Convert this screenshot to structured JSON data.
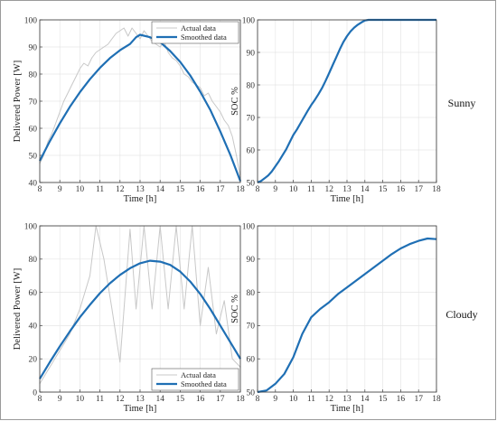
{
  "row_labels": [
    "Sunny",
    "Cloudy"
  ],
  "chart_data": [
    {
      "type": "line",
      "xlabel": "Time [h]",
      "ylabel": "Delivered Power [W]",
      "xlim": [
        8,
        18
      ],
      "ylim": [
        40,
        100
      ],
      "xticks": [
        "8",
        "9",
        "10",
        "11",
        "12",
        "13",
        "14",
        "15",
        "16",
        "17",
        "18"
      ],
      "yticks": [
        "40",
        "50",
        "60",
        "70",
        "80",
        "90",
        "100"
      ],
      "grid": true,
      "legend": "top-center",
      "series": [
        {
          "name": "Actual data",
          "color": "#c8c8c8",
          "x": [
            8,
            8.2,
            8.4,
            8.6,
            8.8,
            9,
            9.2,
            9.4,
            9.6,
            9.8,
            10,
            10.2,
            10.4,
            10.6,
            10.8,
            11,
            11.2,
            11.4,
            11.6,
            11.8,
            12,
            12.2,
            12.4,
            12.6,
            12.8,
            13,
            13.2,
            13.4,
            13.6,
            13.8,
            14,
            14.2,
            14.4,
            14.6,
            14.8,
            15,
            15.2,
            15.4,
            15.6,
            15.8,
            16,
            16.2,
            16.4,
            16.6,
            16.8,
            17,
            17.2,
            17.4,
            17.6,
            17.8,
            18
          ],
          "y": [
            47,
            50,
            55,
            58,
            62,
            66,
            70,
            73,
            76,
            79,
            82,
            84,
            83,
            86,
            88,
            89,
            90,
            91,
            93,
            95,
            96,
            97,
            94,
            97,
            95,
            93,
            96,
            94,
            92,
            91,
            90,
            92,
            88,
            86,
            85,
            83,
            80,
            79,
            77,
            76,
            75,
            72,
            73,
            70,
            68,
            66,
            63,
            61,
            57,
            50,
            42
          ]
        },
        {
          "name": "Smoothed data",
          "color": "#1f6fb4",
          "x": [
            8,
            8.5,
            9,
            9.5,
            10,
            10.5,
            11,
            11.5,
            12,
            12.5,
            12.8,
            13,
            13.5,
            14,
            14.5,
            15,
            15.5,
            16,
            16.5,
            17,
            17.5,
            18
          ],
          "y": [
            48,
            55.2,
            61.8,
            67.9,
            73.3,
            78.1,
            82.3,
            85.9,
            88.8,
            91.1,
            93.6,
            94.5,
            93.6,
            91.8,
            88.5,
            84.5,
            79.5,
            73.5,
            66.8,
            58.8,
            50.2,
            40.5
          ]
        }
      ]
    },
    {
      "type": "line",
      "xlabel": "Time [h]",
      "ylabel": "SOC %",
      "xlim": [
        8,
        18
      ],
      "ylim": [
        50,
        100
      ],
      "xticks": [
        "8",
        "9",
        "10",
        "11",
        "12",
        "13",
        "14",
        "15",
        "16",
        "17",
        "18"
      ],
      "yticks": [
        "50",
        "60",
        "70",
        "80",
        "90",
        "100"
      ],
      "grid": true,
      "series": [
        {
          "color": "#1f6fb4",
          "x": [
            8,
            8.2,
            8.4,
            8.6,
            8.8,
            9,
            9.2,
            9.4,
            9.6,
            9.8,
            10,
            10.2,
            10.4,
            10.6,
            10.8,
            11,
            11.2,
            11.4,
            11.6,
            11.8,
            12,
            12.2,
            12.4,
            12.6,
            12.8,
            13,
            13.2,
            13.4,
            13.6,
            13.8,
            14,
            14.2,
            15,
            16,
            17,
            18
          ],
          "y": [
            50,
            50.5,
            51.3,
            52.2,
            53.4,
            55,
            56.6,
            58.4,
            60.2,
            62.4,
            64.6,
            66.3,
            68.2,
            70.1,
            72,
            73.8,
            75.4,
            77.1,
            79,
            81.2,
            83.6,
            86.1,
            88.5,
            91,
            93.2,
            95,
            96.5,
            97.6,
            98.5,
            99.2,
            99.8,
            100,
            100,
            100,
            100,
            100
          ]
        }
      ]
    },
    {
      "type": "line",
      "xlabel": "Time [h]",
      "ylabel": "Delivered Power [W]",
      "xlim": [
        8,
        18
      ],
      "ylim": [
        0,
        100
      ],
      "xticks": [
        "8",
        "9",
        "10",
        "11",
        "12",
        "13",
        "14",
        "15",
        "16",
        "17",
        "18"
      ],
      "yticks": [
        "0",
        "20",
        "40",
        "60",
        "80",
        "100"
      ],
      "grid": true,
      "legend": "bottom-center",
      "series": [
        {
          "name": "Actual data",
          "color": "#c8c8c8",
          "x": [
            8,
            8.5,
            9,
            9.5,
            10,
            10.5,
            10.8,
            11.2,
            11.6,
            12,
            12.5,
            12.8,
            13.2,
            13.6,
            14,
            14.4,
            14.8,
            15.2,
            15.6,
            16,
            16.4,
            16.8,
            17.2,
            17.6,
            18
          ],
          "y": [
            5,
            15,
            25,
            35,
            50,
            70,
            100,
            80,
            50,
            18,
            98,
            50,
            100,
            50,
            100,
            50,
            100,
            50,
            100,
            40,
            75,
            35,
            55,
            20,
            15
          ]
        },
        {
          "name": "Smoothed data",
          "color": "#1f6fb4",
          "x": [
            8,
            8.5,
            9,
            9.5,
            10,
            10.5,
            11,
            11.5,
            12,
            12.5,
            13,
            13.5,
            14,
            14.5,
            15,
            15.5,
            16,
            16.5,
            17,
            17.5,
            18
          ],
          "y": [
            8,
            18,
            27.5,
            36.5,
            45,
            52.5,
            59.5,
            65.5,
            70.5,
            74.5,
            77.5,
            79,
            78.5,
            76.5,
            72.5,
            66.5,
            59,
            50,
            40,
            30,
            20
          ]
        }
      ]
    },
    {
      "type": "line",
      "xlabel": "Time [h]",
      "ylabel": "SOC %",
      "xlim": [
        8,
        18
      ],
      "ylim": [
        50,
        100
      ],
      "xticks": [
        "8",
        "9",
        "10",
        "11",
        "12",
        "13",
        "14",
        "15",
        "16",
        "17",
        "18"
      ],
      "yticks": [
        "50",
        "60",
        "70",
        "80",
        "90",
        "100"
      ],
      "grid": true,
      "series": [
        {
          "color": "#1f6fb4",
          "x": [
            8,
            8.5,
            9,
            9.5,
            10,
            10.5,
            11,
            11.5,
            12,
            12.5,
            13,
            13.5,
            14,
            14.5,
            15,
            15.5,
            16,
            16.5,
            17,
            17.5,
            18
          ],
          "y": [
            50,
            50.5,
            52.5,
            55.5,
            60.5,
            67.5,
            72.5,
            75,
            77,
            79.5,
            81.5,
            83.5,
            85.5,
            87.5,
            89.5,
            91.5,
            93.2,
            94.5,
            95.5,
            96.2,
            96
          ]
        }
      ]
    }
  ]
}
